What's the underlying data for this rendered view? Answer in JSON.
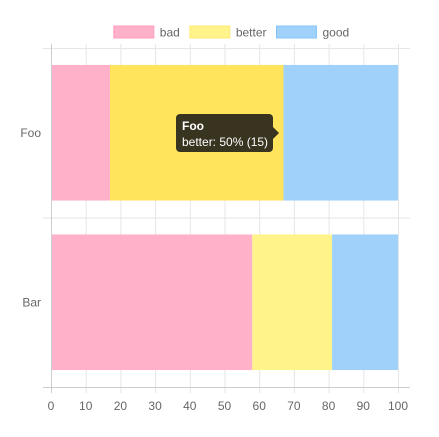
{
  "chart_data": {
    "type": "bar",
    "orientation": "horizontal",
    "stacked": true,
    "categories": [
      "Foo",
      "Bar"
    ],
    "series": [
      {
        "name": "bad",
        "values": [
          17,
          58
        ],
        "color": "#FFB1C9",
        "border": "#FF9EC0"
      },
      {
        "name": "better",
        "values": [
          50,
          23
        ],
        "color": "#FFF38A",
        "border": "#FFE978"
      },
      {
        "name": "good",
        "values": [
          33,
          19
        ],
        "color": "#9FD1FA",
        "border": "#86C4F8"
      }
    ],
    "xlim": [
      0,
      100
    ],
    "xticks": [
      "0",
      "10",
      "20",
      "30",
      "40",
      "50",
      "60",
      "70",
      "80",
      "90",
      "100"
    ],
    "grid": true,
    "legend_position": "top",
    "highlight": {
      "category_index": 0,
      "series_index": 1,
      "color": "#FFE45C"
    },
    "tooltip": {
      "title": "Foo",
      "body": "better: 50% (15)",
      "background": "#2E2A1C"
    }
  }
}
